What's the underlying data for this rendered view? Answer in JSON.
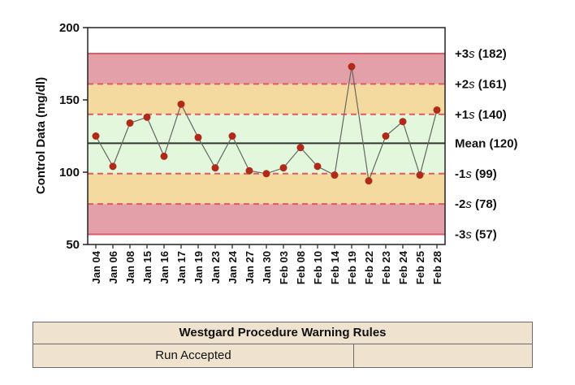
{
  "chart_data": {
    "type": "line",
    "ylabel": "Control Data (mg/dl)",
    "xlabel": "",
    "ylim": [
      50,
      200
    ],
    "yticks": [
      50,
      100,
      150,
      200
    ],
    "mean": 120,
    "sd": 21,
    "categories": [
      "Jan 04",
      "Jan 06",
      "Jan 08",
      "Jan 15",
      "Jan 16",
      "Jan 17",
      "Jan 19",
      "Jan 23",
      "Jan 24",
      "Jan 27",
      "Jan 30",
      "Feb 03",
      "Feb 08",
      "Feb 10",
      "Feb 14",
      "Feb 19",
      "Feb 22",
      "Feb 23",
      "Feb 24",
      "Feb 25",
      "Feb 28"
    ],
    "series": [
      {
        "values": [
          125,
          104,
          134,
          138,
          111,
          147,
          124,
          103,
          125,
          101,
          99,
          103,
          117,
          104,
          98,
          173,
          94,
          125,
          135,
          98,
          143
        ]
      }
    ],
    "control_lines": [
      {
        "label": "+3s (182)",
        "value": 182
      },
      {
        "label": "+2s (161)",
        "value": 161
      },
      {
        "label": "+1s (140)",
        "value": 140
      },
      {
        "label": "Mean (120)",
        "value": 120
      },
      {
        "label": "-1s (99)",
        "value": 99
      },
      {
        "label": "-2s (78)",
        "value": 78
      },
      {
        "label": "-3s (57)",
        "value": 57
      }
    ],
    "zone_colors": {
      "red": "#e3a0a8",
      "yellow": "#f5daa0",
      "green": "#e2f7dc",
      "limit_line": "#e05a66",
      "mean_line": "#333333",
      "marker": "#b02a1a",
      "connector": "#666666"
    }
  },
  "rules_table": {
    "title": "Westgard Procedure Warning Rules",
    "status": "Run Accepted",
    "extra": ""
  }
}
